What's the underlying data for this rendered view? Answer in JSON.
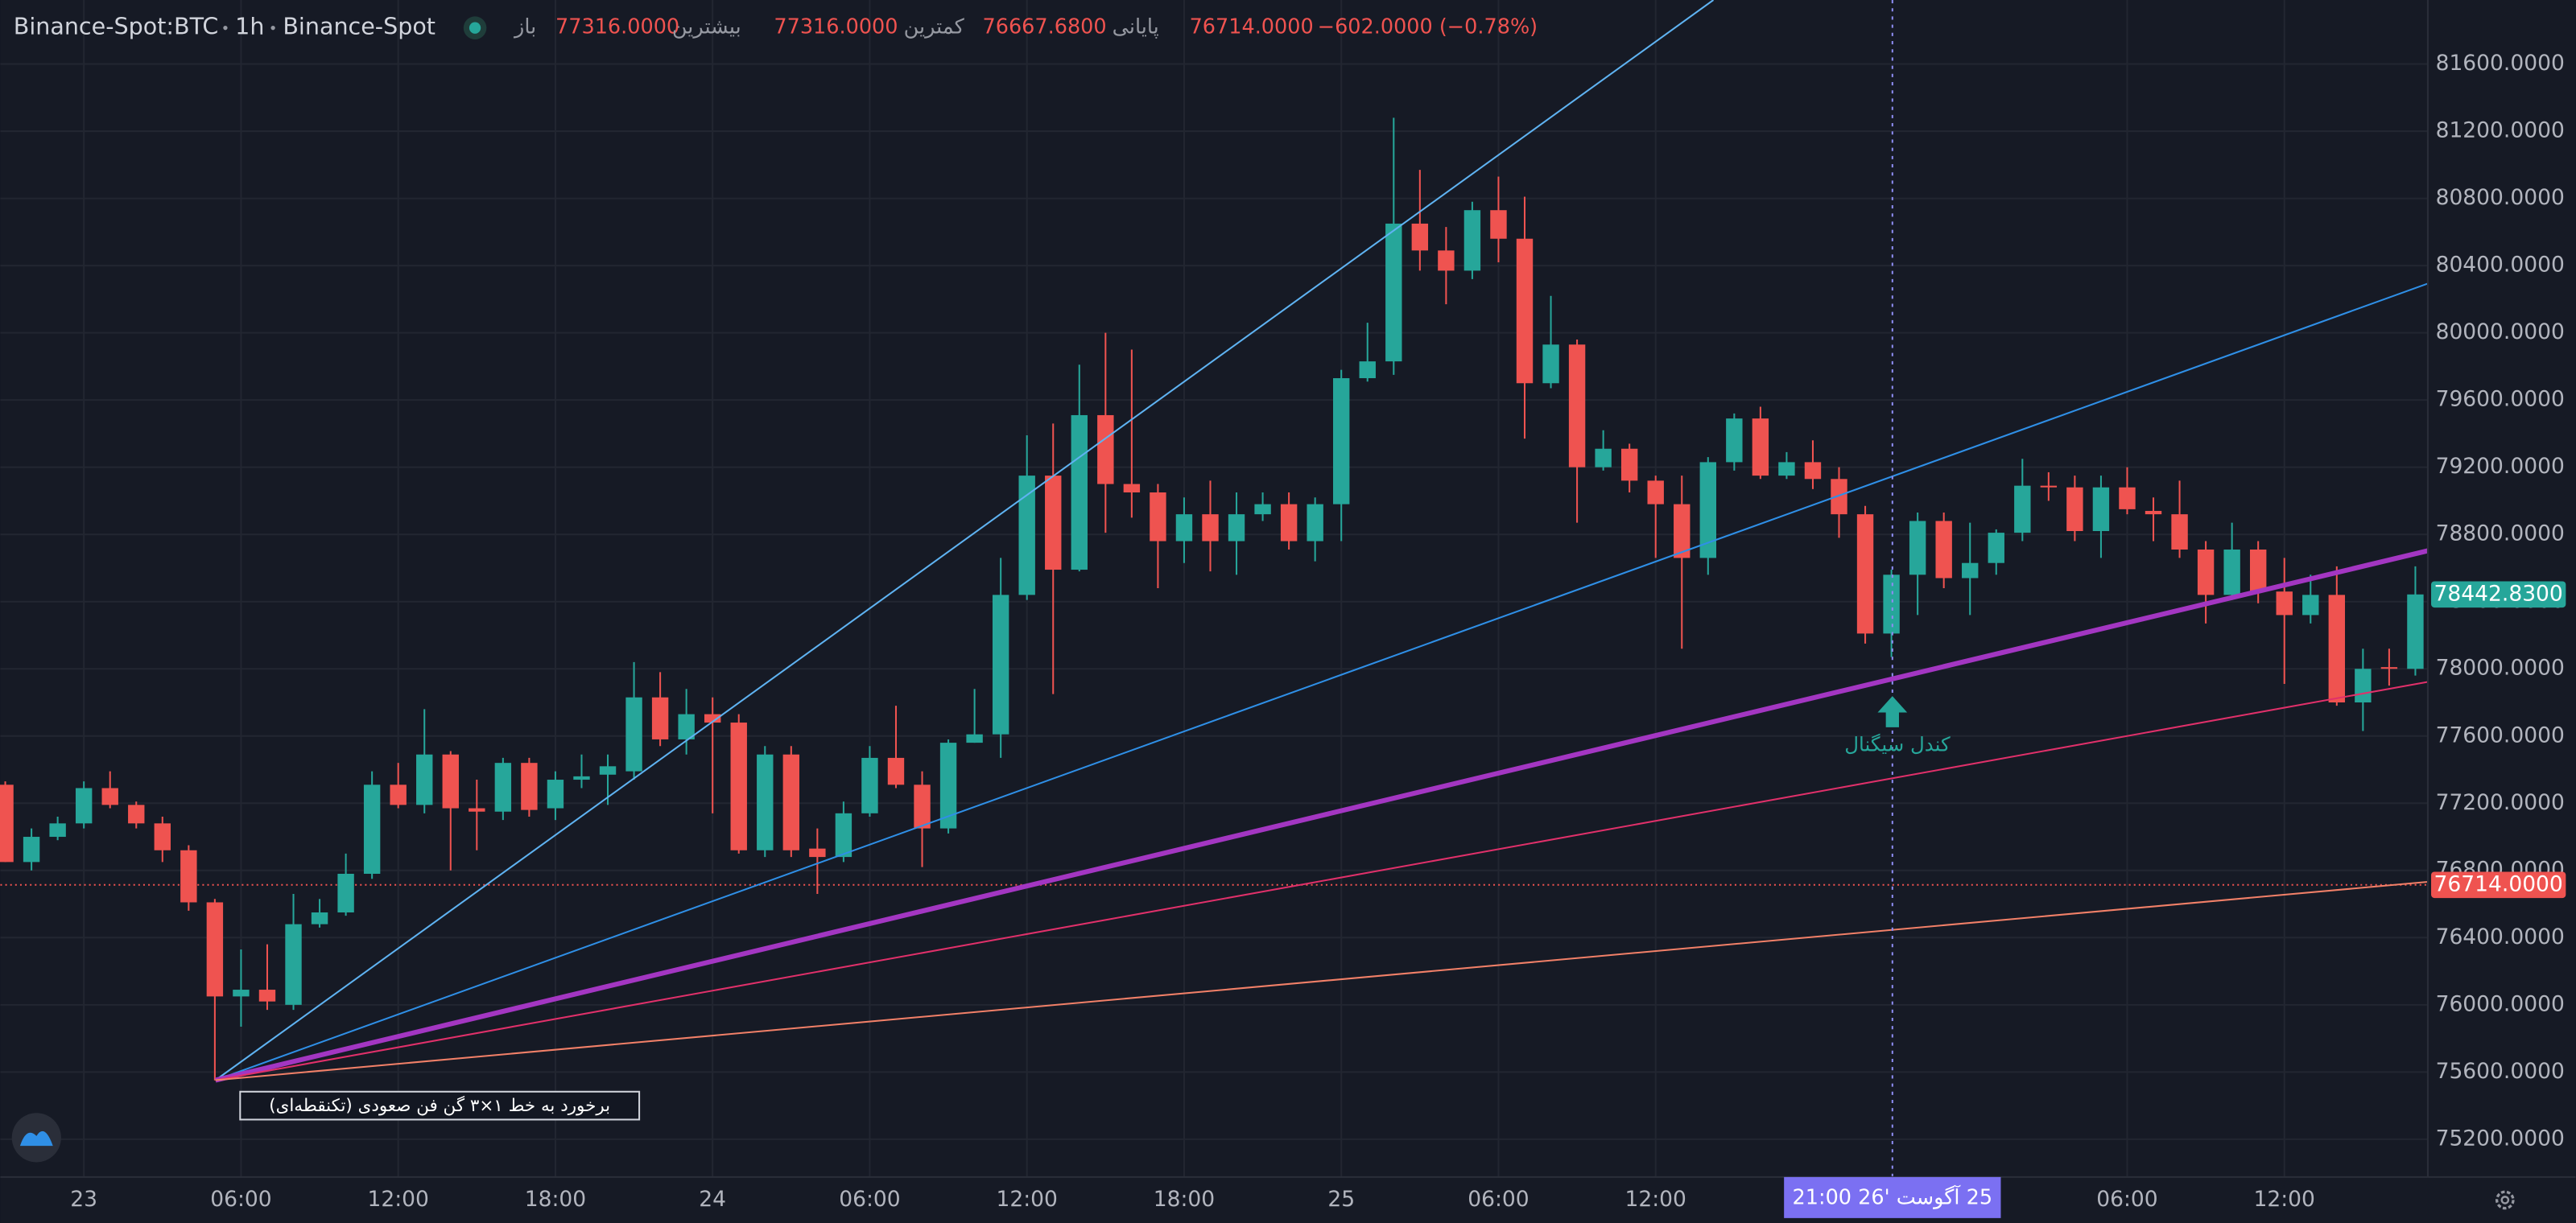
{
  "chart_data": {
    "type": "candlestick",
    "symbol": "Binance-Spot:BTC",
    "interval": "1h",
    "exchange": "Binance-Spot",
    "legend": [
      {
        "label": "باز",
        "value": "77316.0000"
      },
      {
        "label": "بیشترین",
        "value": "77316.0000"
      },
      {
        "label": "کمترین",
        "value": "76667.6800"
      },
      {
        "label": "پایانی",
        "value": "76714.0000"
      }
    ],
    "change": "−602.0000 (−0.78%)",
    "categories": [
      null,
      null,
      null,
      "23",
      null,
      null,
      null,
      null,
      null,
      "06:00",
      null,
      null,
      null,
      null,
      null,
      "12:00",
      null,
      null,
      null,
      null,
      null,
      "18:00",
      null,
      null,
      null,
      null,
      null,
      "24",
      null,
      null,
      null,
      null,
      null,
      "06:00",
      null,
      null,
      null,
      null,
      null,
      "12:00",
      null,
      null,
      null,
      null,
      null,
      "18:00",
      null,
      null,
      null,
      null,
      null,
      "25",
      null,
      null,
      null,
      null,
      null,
      "06:00",
      null,
      null,
      null,
      null,
      null,
      "12:00",
      null,
      null,
      null,
      null,
      null,
      null,
      null,
      null,
      null,
      null,
      null,
      null,
      null,
      null,
      null,
      null,
      null,
      "06:00",
      null,
      null,
      null,
      null,
      null,
      "12:00",
      null,
      null,
      null,
      null,
      null
    ],
    "open": [
      77310,
      76850,
      77000,
      77080,
      77290,
      77190,
      77080,
      76920,
      76610,
      76050,
      76090,
      76000,
      76480,
      76550,
      76780,
      77310,
      77190,
      77490,
      77170,
      77150,
      77440,
      77170,
      77340,
      77370,
      77390,
      77830,
      77580,
      77730,
      77680,
      76920,
      77490,
      76930,
      76880,
      77140,
      77470,
      77310,
      77050,
      77560,
      77610,
      78440,
      79150,
      78590,
      79510,
      79100,
      79050,
      78760,
      78920,
      78760,
      78920,
      78980,
      78760,
      78980,
      79730,
      79830,
      80650,
      80490,
      80370,
      80730,
      80560,
      79700,
      79930,
      79200,
      79310,
      79120,
      78980,
      78660,
      79230,
      79490,
      79150,
      79230,
      79130,
      78920,
      78210,
      78560,
      78880,
      78540,
      78630,
      78810,
      79090,
      79080,
      78820,
      79080,
      78940,
      78920,
      78710,
      78440,
      78710,
      78460,
      78320,
      78440,
      77800,
      78010,
      78000
    ],
    "high": [
      77330,
      77050,
      77120,
      77330,
      77390,
      77210,
      77120,
      76950,
      76630,
      76330,
      76360,
      76660,
      76630,
      76900,
      77390,
      77440,
      77760,
      77510,
      77340,
      77470,
      77470,
      77390,
      77490,
      77490,
      78040,
      77980,
      77880,
      77830,
      77730,
      77540,
      77540,
      77050,
      77210,
      77540,
      77780,
      77390,
      77580,
      77880,
      78660,
      79390,
      79460,
      79810,
      80000,
      79900,
      79100,
      79020,
      79120,
      79050,
      79050,
      79050,
      79020,
      79780,
      80060,
      81280,
      80970,
      80630,
      80780,
      80930,
      80810,
      80220,
      79960,
      79420,
      79340,
      79150,
      79150,
      79260,
      79520,
      79560,
      79290,
      79360,
      79200,
      78970,
      78590,
      78930,
      78930,
      78870,
      78830,
      79250,
      79170,
      79150,
      79150,
      79200,
      79020,
      79120,
      78760,
      78870,
      78760,
      78660,
      78560,
      78610,
      78120,
      78120,
      78610
    ],
    "low": [
      76850,
      76800,
      76980,
      77050,
      77170,
      77050,
      76850,
      76560,
      75550,
      75870,
      75970,
      75970,
      76460,
      76530,
      76750,
      77170,
      77140,
      76800,
      76920,
      77100,
      77120,
      77100,
      77290,
      77190,
      77340,
      77540,
      77490,
      77140,
      76900,
      76880,
      76880,
      76660,
      76850,
      77120,
      77290,
      76820,
      77020,
      77560,
      77470,
      78410,
      77850,
      78580,
      78810,
      78900,
      78480,
      78630,
      78580,
      78560,
      78880,
      78710,
      78640,
      78760,
      79710,
      79750,
      80370,
      80170,
      80320,
      80420,
      79370,
      79670,
      78870,
      79180,
      79050,
      78660,
      78120,
      78560,
      79180,
      79130,
      79130,
      79070,
      78780,
      78150,
      78070,
      78320,
      78480,
      78320,
      78560,
      78760,
      79000,
      78760,
      78660,
      78920,
      78760,
      78660,
      78270,
      78410,
      78390,
      77910,
      78270,
      77780,
      77630,
      77900,
      77960
    ],
    "close": [
      76850,
      77000,
      77080,
      77290,
      77190,
      77080,
      76920,
      76610,
      76050,
      76090,
      76020,
      76480,
      76550,
      76780,
      77310,
      77190,
      77490,
      77170,
      77150,
      77440,
      77160,
      77340,
      77360,
      77420,
      77830,
      77580,
      77730,
      77680,
      76920,
      77490,
      76920,
      76880,
      77140,
      77470,
      77310,
      77050,
      77560,
      77610,
      78440,
      79150,
      78590,
      79510,
      79100,
      79050,
      78760,
      78920,
      78760,
      78920,
      78980,
      78760,
      78980,
      79730,
      79830,
      80650,
      80490,
      80370,
      80730,
      80560,
      79700,
      79930,
      79200,
      79310,
      79120,
      78980,
      78660,
      79230,
      79490,
      79150,
      79230,
      79130,
      78920,
      78210,
      78560,
      78880,
      78540,
      78630,
      78810,
      79090,
      79080,
      78820,
      79080,
      78950,
      78920,
      78710,
      78440,
      78710,
      78460,
      78320,
      78440,
      77800,
      78000,
      78000,
      78442.83
    ],
    "up_color": "#26a69a",
    "down_color": "#ef5350",
    "ylim": [
      74975,
      81981
    ],
    "yticks": [
      {
        "value": 75200,
        "label": "75200.0000"
      },
      {
        "value": 75600,
        "label": "75600.0000"
      },
      {
        "value": 76000,
        "label": "76000.0000"
      },
      {
        "value": 76400,
        "label": "76400.0000"
      },
      {
        "value": 76800,
        "label": "76800.0000"
      },
      {
        "value": 77200,
        "label": "77200.0000"
      },
      {
        "value": 77600,
        "label": "77600.0000"
      },
      {
        "value": 78000,
        "label": "78000.0000"
      },
      {
        "value": 78400,
        "label": "78400.0000"
      },
      {
        "value": 78800,
        "label": "78800.0000"
      },
      {
        "value": 79200,
        "label": "79200.0000"
      },
      {
        "value": 79600,
        "label": "79600.0000"
      },
      {
        "value": 80000,
        "label": "80000.0000"
      },
      {
        "value": 80400,
        "label": "80400.0000"
      },
      {
        "value": 80800,
        "label": "80800.0000"
      },
      {
        "value": 81200,
        "label": "81200.0000"
      },
      {
        "value": 81600,
        "label": "81600.0000"
      }
    ],
    "grid": true,
    "price_labels": [
      {
        "value": 76714,
        "label": "76714.0000",
        "color": "#ef5350",
        "line": true
      },
      {
        "value": 78442.83,
        "label": "78442.8300",
        "color": "#26a69a",
        "line": false
      }
    ],
    "signal_label": "کندل سیگنال",
    "box_label": "برخورد به خط ۱×۳ گن فن صعودی (تکنقطه‌ای)",
    "crosshair_label": "25 آگوست '26 21:00"
  }
}
